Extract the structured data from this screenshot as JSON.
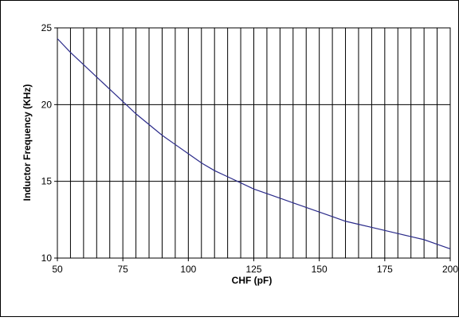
{
  "chart_data": {
    "type": "line",
    "title": "",
    "xlabel": "CHF (pF)",
    "ylabel": "Inductor Frequency (KHz)",
    "xlim": [
      50,
      200
    ],
    "ylim": [
      10,
      25
    ],
    "x_ticks": [
      50,
      75,
      100,
      125,
      150,
      175,
      200
    ],
    "x_tick_labels": [
      "50",
      "75",
      "100",
      "125",
      "150",
      "175",
      "200"
    ],
    "y_ticks": [
      10,
      15,
      20,
      25
    ],
    "y_tick_labels": [
      "10",
      "15",
      "20",
      "25"
    ],
    "x_minor_grid_step": 5,
    "grid": true,
    "legend": "none",
    "line_color": "#2b2b8a",
    "series": [
      {
        "x": [
          50,
          55,
          60,
          65,
          70,
          75,
          80,
          85,
          90,
          95,
          100,
          105,
          110,
          115,
          120,
          125,
          130,
          135,
          140,
          145,
          150,
          155,
          160,
          165,
          170,
          175,
          180,
          185,
          190,
          195,
          200
        ],
        "values": [
          24.3,
          23.4,
          22.6,
          21.8,
          21.0,
          20.2,
          19.4,
          18.7,
          18.0,
          17.4,
          16.8,
          16.2,
          15.7,
          15.3,
          14.9,
          14.5,
          14.2,
          13.9,
          13.6,
          13.3,
          13.0,
          12.7,
          12.4,
          12.2,
          12.0,
          11.8,
          11.6,
          11.4,
          11.2,
          10.9,
          10.6
        ]
      }
    ]
  }
}
